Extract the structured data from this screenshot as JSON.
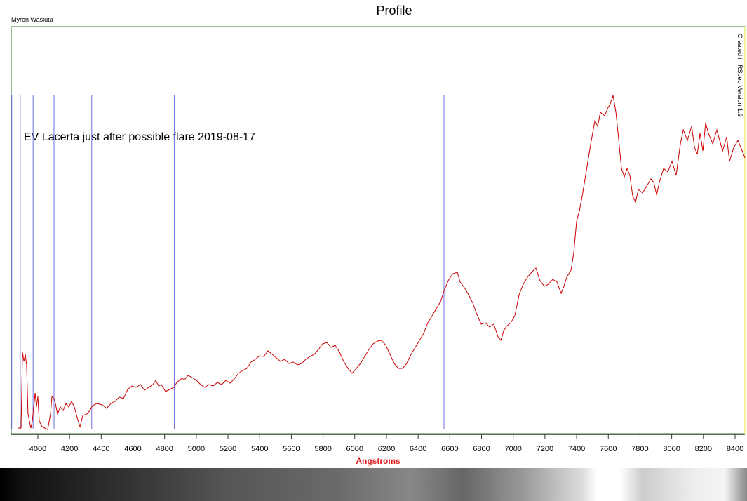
{
  "chart_data": {
    "type": "line",
    "title": "Profile",
    "author": "Myron Wasiuta",
    "credit": "Created in RSpec Version 1.9",
    "annotation": "EV Lacerta just after possible flare 2019-08-17",
    "xlabel": "Angstroms",
    "xlim": [
      3832,
      8462
    ],
    "xticks": [
      4000,
      4200,
      4400,
      4600,
      4800,
      5000,
      5200,
      5400,
      5600,
      5800,
      6000,
      6200,
      6400,
      6600,
      6800,
      7000,
      7200,
      7400,
      7600,
      7800,
      8000,
      8200,
      8400
    ],
    "ylim": [
      0,
      580
    ],
    "reference_lines": [
      3835,
      3889,
      3970,
      4102,
      4340,
      4861,
      6563
    ],
    "reference_color": "#7070e0",
    "series": [
      {
        "color": "#cc0000",
        "x": [
          3876,
          3894,
          3903,
          3912,
          3921,
          3929,
          3938,
          3956,
          3965,
          3983,
          3991,
          4000,
          4009,
          4027,
          4044,
          4062,
          4080,
          4089,
          4106,
          4124,
          4142,
          4160,
          4177,
          4195,
          4213,
          4230,
          4248,
          4266,
          4284,
          4310,
          4328,
          4346,
          4372,
          4407,
          4434,
          4461,
          4487,
          4514,
          4540,
          4567,
          4593,
          4620,
          4647,
          4673,
          4700,
          4726,
          4744,
          4762,
          4779,
          4806,
          4832,
          4859,
          4877,
          4903,
          4930,
          4948,
          4974,
          5001,
          5027,
          5054,
          5080,
          5107,
          5133,
          5160,
          5187,
          5213,
          5240,
          5266,
          5293,
          5319,
          5346,
          5373,
          5399,
          5426,
          5452,
          5479,
          5505,
          5532,
          5558,
          5585,
          5612,
          5638,
          5665,
          5691,
          5718,
          5744,
          5771,
          5797,
          5824,
          5850,
          5877,
          5904,
          5930,
          5957,
          5983,
          6010,
          6036,
          6063,
          6089,
          6116,
          6143,
          6169,
          6196,
          6222,
          6249,
          6275,
          6302,
          6328,
          6355,
          6382,
          6408,
          6435,
          6461,
          6488,
          6514,
          6541,
          6567,
          6594,
          6620,
          6647,
          6665,
          6692,
          6718,
          6745,
          6771,
          6798,
          6824,
          6851,
          6877,
          6904,
          6922,
          6939,
          6957,
          6984,
          7010,
          7037,
          7063,
          7090,
          7116,
          7143,
          7169,
          7196,
          7223,
          7249,
          7276,
          7302,
          7320,
          7338,
          7365,
          7382,
          7400,
          7418,
          7435,
          7453,
          7471,
          7489,
          7515,
          7533,
          7550,
          7577,
          7595,
          7612,
          7630,
          7648,
          7666,
          7683,
          7701,
          7719,
          7736,
          7754,
          7772,
          7790,
          7816,
          7843,
          7869,
          7887,
          7905,
          7922,
          7949,
          7975,
          8002,
          8028,
          8055,
          8073,
          8099,
          8126,
          8144,
          8161,
          8179,
          8197,
          8214,
          8232,
          8259,
          8285,
          8303,
          8321,
          8347,
          8365,
          8392,
          8418,
          8445,
          8462
        ],
        "values": [
          8,
          8,
          116,
          103,
          113,
          98,
          28,
          8,
          18,
          58,
          38,
          53,
          18,
          10,
          8,
          6,
          28,
          53,
          48,
          28,
          38,
          33,
          43,
          38,
          46,
          38,
          23,
          10,
          26,
          28,
          33,
          40,
          43,
          41,
          36,
          43,
          46,
          52,
          50,
          63,
          68,
          66,
          70,
          62,
          66,
          70,
          76,
          68,
          70,
          60,
          63,
          66,
          73,
          78,
          78,
          83,
          80,
          76,
          70,
          66,
          70,
          68,
          73,
          70,
          76,
          72,
          78,
          86,
          90,
          93,
          102,
          106,
          111,
          110,
          118,
          113,
          108,
          103,
          106,
          100,
          102,
          98,
          100,
          106,
          110,
          113,
          120,
          128,
          130,
          123,
          126,
          116,
          103,
          93,
          86,
          93,
          100,
          110,
          120,
          128,
          132,
          133,
          126,
          113,
          100,
          93,
          93,
          100,
          113,
          123,
          133,
          143,
          158,
          168,
          178,
          188,
          206,
          220,
          228,
          230,
          216,
          208,
          198,
          186,
          170,
          156,
          158,
          152,
          156,
          138,
          133,
          146,
          153,
          158,
          168,
          198,
          213,
          223,
          230,
          236,
          218,
          210,
          213,
          220,
          216,
          200,
          210,
          223,
          233,
          258,
          303,
          318,
          338,
          363,
          388,
          413,
          446,
          438,
          458,
          453,
          463,
          470,
          482,
          458,
          418,
          378,
          366,
          378,
          368,
          338,
          330,
          348,
          343,
          353,
          363,
          358,
          340,
          358,
          378,
          373,
          388,
          368,
          413,
          433,
          418,
          438,
          408,
          398,
          428,
          403,
          443,
          428,
          413,
          433,
          418,
          403,
          423,
          388,
          408,
          418,
          403,
          393
        ]
      }
    ]
  }
}
